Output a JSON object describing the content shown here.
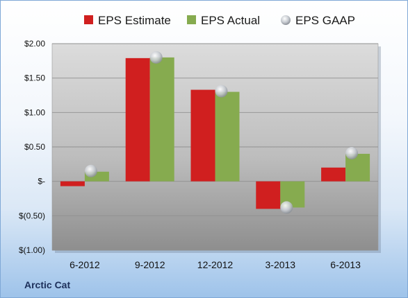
{
  "company": "Arctic Cat",
  "colors": {
    "estimate": "#d01f1f",
    "actual": "#86ab4f",
    "gaap": "#c8ccd2"
  },
  "chart_data": {
    "type": "bar",
    "categories": [
      "6-2012",
      "9-2012",
      "12-2012",
      "3-2013",
      "6-2013"
    ],
    "series": [
      {
        "name": "EPS Estimate",
        "values": [
          -0.07,
          1.79,
          1.33,
          -0.4,
          0.2
        ]
      },
      {
        "name": "EPS Actual",
        "values": [
          0.14,
          1.8,
          1.3,
          -0.38,
          0.4
        ]
      },
      {
        "name": "EPS GAAP",
        "type": "scatter",
        "values": [
          0.15,
          1.8,
          1.31,
          -0.38,
          0.41
        ]
      }
    ],
    "ylim": [
      -1.0,
      2.0
    ],
    "yticks": [
      2.0,
      1.5,
      1.0,
      0.5,
      0,
      -0.5,
      -1.0
    ],
    "ytick_labels": [
      "$2.00",
      "$1.50",
      "$1.00",
      "$0.50",
      "$-",
      "$(0.50)",
      "$(1.00)"
    ],
    "legend_position": "top",
    "grid": true
  }
}
